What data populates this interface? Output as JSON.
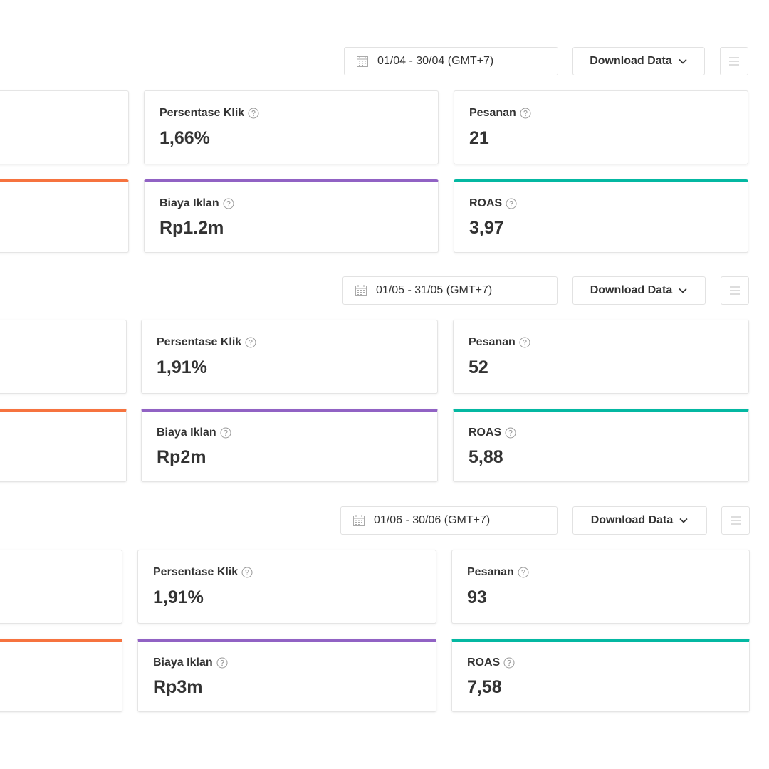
{
  "sections": [
    {
      "date_range": "01/04 - 30/04 (GMT+7)",
      "download_label": "Download Data",
      "cards": [
        {
          "label": "Persentase Klik",
          "value": "1,66%"
        },
        {
          "label": "Pesanan",
          "value": "21"
        },
        {
          "label": "Biaya Iklan",
          "value": "Rp1.2m"
        },
        {
          "label": "ROAS",
          "value": "3,97"
        }
      ]
    },
    {
      "date_range": "01/05 - 31/05 (GMT+7)",
      "download_label": "Download Data",
      "cards": [
        {
          "label": "Persentase Klik",
          "value": "1,91%"
        },
        {
          "label": "Pesanan",
          "value": "52"
        },
        {
          "label": "Biaya Iklan",
          "value": "Rp2m"
        },
        {
          "label": "ROAS",
          "value": "5,88"
        }
      ]
    },
    {
      "date_range": "01/06 - 30/06 (GMT+7)",
      "download_label": "Download Data",
      "cards": [
        {
          "label": "Persentase Klik",
          "value": "1,91%"
        },
        {
          "label": "Pesanan",
          "value": "93"
        },
        {
          "label": "Biaya Iklan",
          "value": "Rp3m"
        },
        {
          "label": "ROAS",
          "value": "7,58"
        }
      ]
    }
  ]
}
